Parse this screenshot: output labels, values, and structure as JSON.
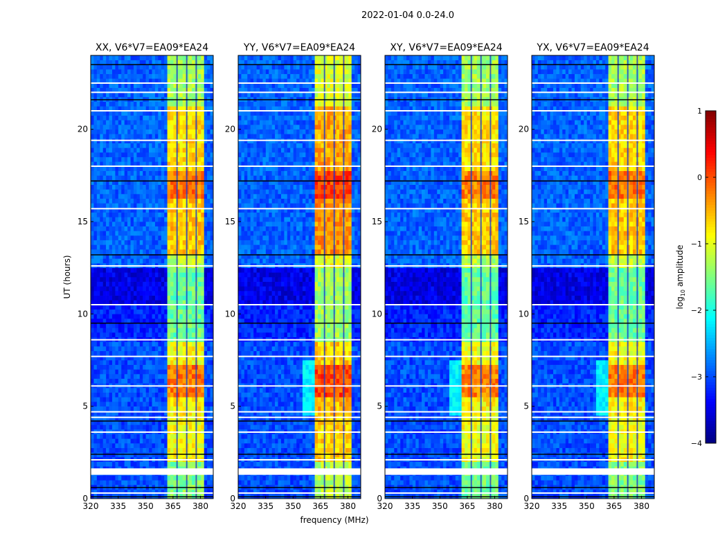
{
  "chart_data": {
    "type": "heatmap",
    "suptitle": "2022-01-04 0.0-24.0",
    "xlabel": "frequency (MHz)",
    "ylabel": "UT (hours)",
    "xlim": [
      320,
      387
    ],
    "ylim": [
      0,
      24
    ],
    "xticks": [
      "320",
      "335",
      "350",
      "365",
      "380"
    ],
    "yticks": [
      "0",
      "5",
      "10",
      "15",
      "20"
    ],
    "colorbar": {
      "label": "log10 amplitude",
      "label_main": "log",
      "label_sub": "10",
      "label_rest": " amplitude",
      "range": [
        -4,
        1
      ],
      "ticks": [
        "1",
        "0",
        "−1",
        "−2",
        "−3",
        "−4"
      ],
      "colormap": "jet"
    },
    "panels": [
      {
        "title": "XX, V6*V7=EA09*EA24",
        "band_gain": 0.0
      },
      {
        "title": "YY, V6*V7=EA09*EA24",
        "band_gain": 0.25
      },
      {
        "title": "XY, V6*V7=EA09*EA24",
        "band_gain": -0.05
      },
      {
        "title": "YX, V6*V7=EA09*EA24",
        "band_gain": 0.0
      }
    ],
    "rfi_band_mhz": [
      362.5,
      382.5
    ],
    "band_gaps_mhz": [
      367.2,
      372.5,
      377.7
    ],
    "background_log_amp": -3.0,
    "band_profile_by_time": [
      {
        "from": 0,
        "to": 2,
        "level": -1.5
      },
      {
        "from": 2,
        "to": 4.5,
        "level": -0.9
      },
      {
        "from": 4.5,
        "to": 5.5,
        "level": -0.8
      },
      {
        "from": 5.5,
        "to": 7.3,
        "level": -0.2
      },
      {
        "from": 7.3,
        "to": 8.5,
        "level": -0.9
      },
      {
        "from": 8.5,
        "to": 12.5,
        "level": -1.6
      },
      {
        "from": 12.5,
        "to": 13.3,
        "level": -1.2
      },
      {
        "from": 13.3,
        "to": 16.3,
        "level": -0.6
      },
      {
        "from": 16.3,
        "to": 17.8,
        "level": -0.2
      },
      {
        "from": 17.8,
        "to": 21.3,
        "level": -0.7
      },
      {
        "from": 21.3,
        "to": 24,
        "level": -1.3
      }
    ],
    "background_by_time": [
      {
        "from": 0,
        "to": 8.5,
        "level": -3.0
      },
      {
        "from": 8.5,
        "to": 10.5,
        "level": -3.2
      },
      {
        "from": 10.5,
        "to": 12.5,
        "level": -3.5
      },
      {
        "from": 12.5,
        "to": 24,
        "level": -2.9
      }
    ],
    "flagged_hours_white": [
      0.3,
      1.4,
      1.5,
      1.6,
      2.1,
      3.6,
      4.4,
      4.7,
      6.1,
      7.7,
      8.6,
      10.5,
      12.6,
      15.7,
      18.0,
      19.4,
      21.0,
      22.0,
      22.5
    ],
    "flagged_hours_black": [
      0.1,
      0.6,
      2.4,
      4.2,
      9.5,
      13.2,
      17.2,
      21.6,
      23.5
    ]
  }
}
